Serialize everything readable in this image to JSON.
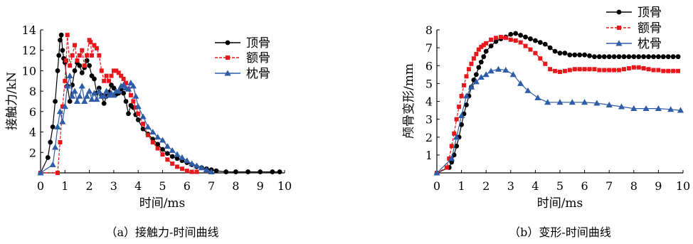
{
  "chart_data": [
    {
      "type": "line",
      "caption": "（a）接触力-时间曲线",
      "xlabel": "时间/ms",
      "ylabel": "接触力/kN",
      "xlim": [
        0,
        10
      ],
      "ylim": [
        0,
        14
      ],
      "xticks": [
        0,
        1,
        2,
        3,
        4,
        5,
        6,
        7,
        8,
        9,
        10
      ],
      "yticks": [
        2,
        4,
        6,
        8,
        10,
        12,
        14
      ],
      "legend_position": "top-right",
      "series": [
        {
          "name": "顶骨",
          "color": "#000000",
          "marker": "circle",
          "x": [
            0,
            0.3,
            0.4,
            0.5,
            0.6,
            0.7,
            0.75,
            0.8,
            0.85,
            0.9,
            0.95,
            1.0,
            1.1,
            1.2,
            1.3,
            1.4,
            1.5,
            1.6,
            1.7,
            1.8,
            1.9,
            2.0,
            2.1,
            2.2,
            2.3,
            2.4,
            2.5,
            2.6,
            2.7,
            2.8,
            2.9,
            3.0,
            3.1,
            3.2,
            3.3,
            3.4,
            3.5,
            3.6,
            3.7,
            3.8,
            3.9,
            4.0,
            4.2,
            4.4,
            4.6,
            4.8,
            5.0,
            5.2,
            5.4,
            5.6,
            5.8,
            6.0,
            6.2,
            6.4,
            6.6,
            6.8,
            7.0,
            7.2,
            7.6,
            8.0,
            8.5,
            9.0,
            9.5,
            9.8
          ],
          "y": [
            0,
            1.5,
            3.0,
            4.5,
            7.0,
            10.0,
            11.5,
            13.0,
            13.5,
            12.0,
            11.2,
            10.8,
            8.5,
            7.0,
            8.6,
            10.0,
            10.8,
            10.5,
            9.8,
            10.3,
            11.0,
            10.5,
            9.5,
            9.2,
            7.8,
            8.3,
            7.6,
            6.8,
            7.5,
            7.9,
            8.6,
            8.3,
            7.7,
            7.8,
            8.2,
            7.8,
            7.0,
            5.8,
            6.6,
            6.4,
            5.7,
            5.2,
            4.3,
            3.8,
            3.3,
            2.8,
            2.3,
            1.9,
            1.6,
            1.4,
            1.2,
            1.0,
            0.8,
            0.6,
            0.5,
            0.4,
            0.3,
            0.2,
            0.1,
            0.1,
            0.1,
            0.1,
            0.1,
            0.1
          ]
        },
        {
          "name": "额骨",
          "color": "#e8171c",
          "marker": "square",
          "x": [
            0,
            0.7,
            0.8,
            0.9,
            1.0,
            1.05,
            1.1,
            1.2,
            1.3,
            1.4,
            1.5,
            1.6,
            1.7,
            1.8,
            1.9,
            2.0,
            2.05,
            2.1,
            2.2,
            2.3,
            2.4,
            2.5,
            2.6,
            2.7,
            2.8,
            2.9,
            3.0,
            3.1,
            3.2,
            3.3,
            3.4,
            3.5,
            3.6,
            3.7,
            3.8,
            3.9,
            4.0,
            4.2,
            4.4,
            4.6,
            4.8,
            5.0,
            5.2,
            5.4,
            5.6,
            5.8,
            6.0,
            6.2,
            6.4
          ],
          "y": [
            0,
            0,
            3.0,
            6.5,
            9.0,
            11.0,
            13.5,
            10.5,
            11.5,
            12.5,
            11.0,
            11.5,
            12.0,
            10.5,
            11.5,
            13.0,
            12.8,
            11.5,
            12.5,
            12.2,
            11.5,
            10.0,
            9.0,
            9.5,
            9.0,
            9.5,
            10.0,
            10.0,
            9.8,
            9.5,
            9.2,
            8.8,
            8.2,
            7.6,
            7.0,
            6.4,
            5.8,
            4.8,
            3.7,
            3.0,
            2.4,
            1.8,
            1.3,
            0.9,
            0.6,
            0.4,
            0.2,
            0.1,
            0.1
          ]
        },
        {
          "name": "枕骨",
          "color": "#2e5ca8",
          "marker": "triangle",
          "x": [
            0,
            0.5,
            0.6,
            0.7,
            0.8,
            0.9,
            1.0,
            1.1,
            1.2,
            1.3,
            1.4,
            1.5,
            1.6,
            1.7,
            1.8,
            1.9,
            2.0,
            2.1,
            2.2,
            2.3,
            2.4,
            2.5,
            2.6,
            2.7,
            2.8,
            2.9,
            3.0,
            3.1,
            3.2,
            3.3,
            3.4,
            3.5,
            3.6,
            3.7,
            3.8,
            3.9,
            4.0,
            4.2,
            4.4,
            4.6,
            4.8,
            5.0,
            5.2,
            5.4,
            5.6,
            5.8,
            6.0,
            6.2,
            6.4,
            6.6,
            6.8,
            7.0
          ],
          "y": [
            0,
            0.8,
            2.5,
            4.5,
            6.0,
            5.0,
            6.5,
            8.5,
            9.5,
            7.5,
            8.0,
            7.0,
            7.5,
            8.5,
            7.0,
            7.5,
            8.0,
            7.2,
            7.8,
            7.2,
            8.0,
            7.5,
            7.5,
            8.0,
            7.6,
            7.8,
            7.6,
            8.0,
            8.0,
            8.5,
            8.6,
            8.3,
            8.2,
            8.8,
            8.5,
            7.5,
            6.5,
            5.5,
            4.5,
            4.0,
            3.5,
            3.2,
            2.6,
            2.2,
            1.8,
            1.5,
            1.2,
            0.9,
            0.7,
            0.5,
            0.3,
            0.1
          ]
        }
      ]
    },
    {
      "type": "line",
      "caption": "（b）变形-时间曲线",
      "xlabel": "时间/ms",
      "ylabel": "颅骨变形/mm",
      "xlim": [
        0,
        10
      ],
      "ylim": [
        0,
        8
      ],
      "xticks": [
        0,
        1,
        2,
        3,
        4,
        5,
        6,
        7,
        8,
        9,
        10
      ],
      "yticks": [
        1,
        2,
        3,
        4,
        5,
        6,
        7,
        8
      ],
      "legend_position": "top-right",
      "series": [
        {
          "name": "顶骨",
          "color": "#000000",
          "marker": "circle",
          "x": [
            0,
            0.5,
            0.6,
            0.7,
            0.8,
            0.9,
            1.0,
            1.1,
            1.2,
            1.3,
            1.4,
            1.5,
            1.6,
            1.7,
            1.8,
            1.9,
            2.0,
            2.2,
            2.4,
            2.6,
            2.8,
            3.0,
            3.2,
            3.4,
            3.6,
            3.8,
            4.0,
            4.2,
            4.4,
            4.6,
            4.8,
            5.0,
            5.2,
            5.4,
            5.6,
            5.8,
            6.0,
            6.2,
            6.4,
            6.6,
            6.8,
            7.0,
            7.2,
            7.4,
            7.6,
            7.8,
            8.0,
            8.2,
            8.4,
            8.6,
            8.8,
            9.0,
            9.2,
            9.4,
            9.6,
            9.8
          ],
          "y": [
            0,
            0.3,
            0.6,
            1.0,
            1.5,
            2.0,
            2.7,
            3.3,
            3.8,
            4.3,
            4.8,
            5.2,
            5.5,
            5.9,
            6.2,
            6.5,
            6.8,
            7.1,
            7.35,
            7.5,
            7.6,
            7.75,
            7.8,
            7.7,
            7.6,
            7.5,
            7.4,
            7.3,
            7.2,
            7.0,
            6.8,
            6.7,
            6.7,
            6.6,
            6.6,
            6.6,
            6.6,
            6.55,
            6.5,
            6.5,
            6.5,
            6.5,
            6.5,
            6.5,
            6.5,
            6.5,
            6.5,
            6.5,
            6.5,
            6.5,
            6.5,
            6.5,
            6.5,
            6.5,
            6.5,
            6.5
          ]
        },
        {
          "name": "额骨",
          "color": "#e8171c",
          "marker": "square",
          "x": [
            0,
            0.4,
            0.5,
            0.6,
            0.7,
            0.8,
            0.9,
            1.0,
            1.1,
            1.2,
            1.3,
            1.4,
            1.5,
            1.6,
            1.7,
            1.8,
            1.9,
            2.0,
            2.2,
            2.4,
            2.6,
            2.8,
            3.0,
            3.2,
            3.4,
            3.6,
            3.8,
            4.0,
            4.2,
            4.4,
            4.6,
            4.8,
            5.0,
            5.2,
            5.4,
            5.6,
            5.8,
            6.0,
            6.2,
            6.4,
            6.6,
            6.8,
            7.0,
            7.2,
            7.4,
            7.6,
            7.8,
            8.0,
            8.2,
            8.4,
            8.6,
            8.8,
            9.0,
            9.2,
            9.4,
            9.6,
            9.8
          ],
          "y": [
            0,
            0.3,
            0.8,
            1.5,
            2.2,
            3.0,
            3.7,
            4.3,
            4.9,
            5.4,
            5.8,
            6.1,
            6.4,
            6.65,
            6.9,
            7.05,
            7.15,
            7.25,
            7.45,
            7.55,
            7.6,
            7.55,
            7.45,
            7.4,
            7.3,
            7.1,
            6.9,
            6.7,
            6.4,
            6.1,
            5.8,
            5.7,
            5.65,
            5.7,
            5.75,
            5.8,
            5.8,
            5.8,
            5.8,
            5.8,
            5.75,
            5.75,
            5.75,
            5.75,
            5.75,
            5.8,
            5.85,
            5.9,
            5.9,
            5.85,
            5.8,
            5.75,
            5.75,
            5.7,
            5.7,
            5.7,
            5.7
          ]
        },
        {
          "name": "枕骨",
          "color": "#2e5ca8",
          "marker": "triangle",
          "x": [
            0,
            0.6,
            0.8,
            1.0,
            1.2,
            1.4,
            1.6,
            1.8,
            2.0,
            2.2,
            2.5,
            2.8,
            3.1,
            3.4,
            3.7,
            4.1,
            4.5,
            5.0,
            5.5,
            6.0,
            6.5,
            7.0,
            7.5,
            8.0,
            8.5,
            9.0,
            9.5,
            9.9
          ],
          "y": [
            0,
            0.8,
            2.0,
            3.2,
            4.3,
            4.8,
            5.1,
            5.35,
            5.5,
            5.7,
            5.8,
            5.75,
            5.5,
            5.0,
            4.6,
            4.2,
            3.95,
            3.95,
            3.95,
            3.95,
            3.9,
            3.8,
            3.7,
            3.6,
            3.6,
            3.6,
            3.55,
            3.5
          ]
        }
      ]
    }
  ]
}
